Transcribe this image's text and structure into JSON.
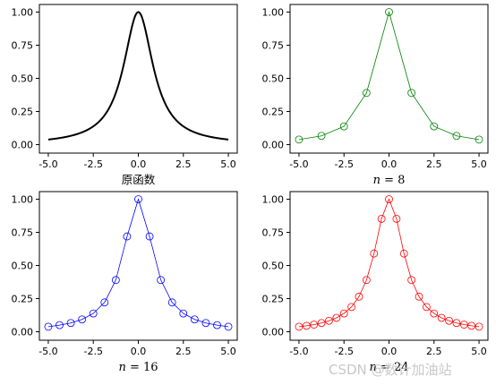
{
  "watermark": "CSDN @数计加油站",
  "x_ticks": [
    "-5.0",
    "-2.5",
    "0.0",
    "2.5",
    "5.0"
  ],
  "y_ticks": [
    "0.00",
    "0.25",
    "0.50",
    "0.75",
    "1.00"
  ],
  "chart_data": [
    {
      "type": "line",
      "xlabel": "原函数",
      "xlim": [
        -5,
        5
      ],
      "ylim": [
        0,
        1
      ],
      "color": "#000000",
      "markers": false,
      "function_name": "1/(1+x^2)"
    },
    {
      "type": "line",
      "xlabel_n": "8",
      "xlim": [
        -5,
        5
      ],
      "ylim": [
        0,
        1
      ],
      "color": "#008000",
      "markers": true,
      "x": [
        -5,
        -3.75,
        -2.5,
        -1.25,
        0,
        1.25,
        2.5,
        3.75,
        5
      ],
      "y": [
        0.038,
        0.066,
        0.138,
        0.39,
        1.0,
        0.39,
        0.138,
        0.066,
        0.038
      ]
    },
    {
      "type": "line",
      "xlabel_n": "16",
      "xlim": [
        -5,
        5
      ],
      "ylim": [
        0,
        1
      ],
      "color": "#0000ff",
      "markers": true,
      "x": [
        -5,
        -4.375,
        -3.75,
        -3.125,
        -2.5,
        -1.875,
        -1.25,
        -0.625,
        0,
        0.625,
        1.25,
        1.875,
        2.5,
        3.125,
        3.75,
        4.375,
        5
      ],
      "y": [
        0.038,
        0.05,
        0.066,
        0.093,
        0.138,
        0.221,
        0.39,
        0.719,
        1.0,
        0.719,
        0.39,
        0.221,
        0.138,
        0.093,
        0.066,
        0.05,
        0.038
      ]
    },
    {
      "type": "line",
      "xlabel_n": "24",
      "xlim": [
        -5,
        5
      ],
      "ylim": [
        0,
        1
      ],
      "color": "#ff0000",
      "markers": true,
      "x": [
        -5,
        -4.583,
        -4.167,
        -3.75,
        -3.333,
        -2.917,
        -2.5,
        -2.083,
        -1.667,
        -1.25,
        -0.833,
        -0.417,
        0,
        0.417,
        0.833,
        1.25,
        1.667,
        2.083,
        2.5,
        2.917,
        3.333,
        3.75,
        4.167,
        4.583,
        5
      ],
      "y": [
        0.038,
        0.045,
        0.054,
        0.066,
        0.083,
        0.105,
        0.138,
        0.187,
        0.265,
        0.39,
        0.59,
        0.852,
        1.0,
        0.852,
        0.59,
        0.39,
        0.265,
        0.187,
        0.138,
        0.105,
        0.083,
        0.066,
        0.054,
        0.045,
        0.038
      ]
    }
  ]
}
